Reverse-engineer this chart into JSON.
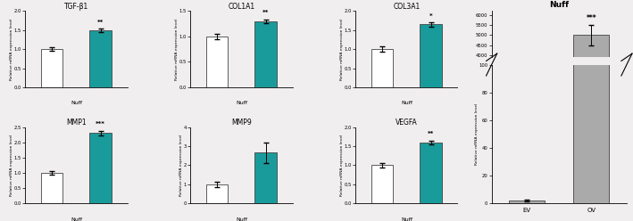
{
  "charts": [
    {
      "title": "TGF-β1",
      "values": [
        1.0,
        1.5
      ],
      "errors": [
        0.04,
        0.04
      ],
      "colors": [
        "white",
        "#1a9b9b"
      ],
      "ylim": [
        0,
        2.0
      ],
      "yticks": [
        0.0,
        0.5,
        1.0,
        1.5,
        2.0
      ],
      "significance": "**",
      "sig_on": 1,
      "xlabel": "Nuff",
      "row": 0,
      "col": 0
    },
    {
      "title": "COL1A1",
      "values": [
        1.0,
        1.3
      ],
      "errors": [
        0.06,
        0.04
      ],
      "colors": [
        "white",
        "#1a9b9b"
      ],
      "ylim": [
        0,
        1.5
      ],
      "yticks": [
        0.0,
        0.5,
        1.0,
        1.5
      ],
      "significance": "**",
      "sig_on": 1,
      "xlabel": "Nuff",
      "row": 0,
      "col": 1
    },
    {
      "title": "COL3A1",
      "values": [
        1.0,
        1.65
      ],
      "errors": [
        0.07,
        0.06
      ],
      "colors": [
        "white",
        "#1a9b9b"
      ],
      "ylim": [
        0,
        2.0
      ],
      "yticks": [
        0.0,
        0.5,
        1.0,
        1.5,
        2.0
      ],
      "significance": "*",
      "sig_on": 1,
      "xlabel": "Nuff",
      "row": 0,
      "col": 2
    },
    {
      "title": "MMP1",
      "values": [
        1.0,
        2.3
      ],
      "errors": [
        0.05,
        0.08
      ],
      "colors": [
        "white",
        "#1a9b9b"
      ],
      "ylim": [
        0,
        2.5
      ],
      "yticks": [
        0.0,
        0.5,
        1.0,
        1.5,
        2.0,
        2.5
      ],
      "significance": "***",
      "sig_on": 1,
      "xlabel": "Nuff",
      "row": 1,
      "col": 0
    },
    {
      "title": "MMP9",
      "values": [
        1.0,
        2.65
      ],
      "errors": [
        0.15,
        0.55
      ],
      "colors": [
        "white",
        "#1a9b9b"
      ],
      "ylim": [
        0,
        4.0
      ],
      "yticks": [
        0,
        1,
        2,
        3,
        4
      ],
      "significance": "",
      "sig_on": 1,
      "xlabel": "Nuff",
      "row": 1,
      "col": 1
    },
    {
      "title": "VEGFA",
      "values": [
        1.0,
        1.6
      ],
      "errors": [
        0.06,
        0.05
      ],
      "colors": [
        "white",
        "#1a9b9b"
      ],
      "ylim": [
        0,
        2.0
      ],
      "yticks": [
        0.0,
        0.5,
        1.0,
        1.5,
        2.0
      ],
      "significance": "**",
      "sig_on": 1,
      "xlabel": "Nuff",
      "row": 1,
      "col": 2
    }
  ],
  "nuff_chart": {
    "title": "Nuff",
    "values": [
      2.0,
      5000.0
    ],
    "errors": [
      0.5,
      520.0
    ],
    "colors": [
      "#aaaaaa",
      "#aaaaaa"
    ],
    "ylim_lower": [
      0,
      100
    ],
    "ylim_upper": [
      3900,
      6200
    ],
    "yticks_lower": [
      0,
      20,
      40,
      60,
      80,
      100
    ],
    "yticks_upper": [
      4000,
      4500,
      5000,
      5500,
      6000
    ],
    "significance": "***",
    "xlabel_labels": [
      "EV",
      "OV"
    ]
  },
  "ylabel": "Relative mRNA expression level",
  "bar_width": 0.45,
  "teal_color": "#1a9b9b",
  "fig_bg": "#f0eeee"
}
